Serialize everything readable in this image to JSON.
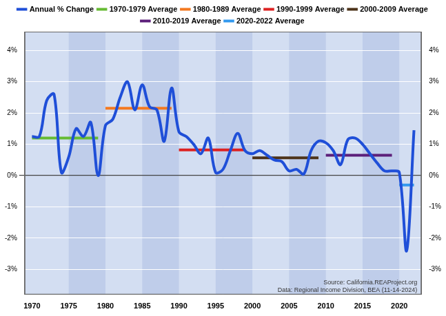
{
  "chart_data": {
    "type": "line",
    "x": [
      1970,
      1971,
      1972,
      1973,
      1974,
      1975,
      1976,
      1977,
      1978,
      1979,
      1980,
      1981,
      1982,
      1983,
      1984,
      1985,
      1986,
      1987,
      1988,
      1989,
      1990,
      1991,
      1992,
      1993,
      1994,
      1995,
      1996,
      1997,
      1998,
      1999,
      2000,
      2001,
      2002,
      2003,
      2004,
      2005,
      2006,
      2007,
      2008,
      2009,
      2010,
      2011,
      2012,
      2013,
      2014,
      2015,
      2016,
      2017,
      2018,
      2019,
      2020,
      2021,
      2022
    ],
    "series": [
      {
        "name": "Annual % Change",
        "color": "#1f4fd8",
        "values": [
          1.25,
          1.25,
          2.4,
          2.6,
          0.1,
          0.6,
          1.5,
          1.25,
          1.7,
          0.0,
          1.6,
          1.8,
          2.5,
          3.0,
          2.1,
          2.9,
          2.2,
          2.1,
          1.1,
          2.8,
          1.4,
          1.25,
          1.0,
          0.7,
          1.2,
          0.1,
          0.2,
          0.8,
          1.35,
          0.8,
          0.7,
          0.8,
          0.65,
          0.5,
          0.45,
          0.15,
          0.2,
          0.05,
          0.8,
          1.1,
          1.05,
          0.8,
          0.35,
          1.15,
          1.2,
          1.0,
          0.7,
          0.4,
          0.15,
          0.15,
          0.1,
          -2.4,
          1.45
        ]
      },
      {
        "name": "1970-1979 Average",
        "color": "#66bb33",
        "values": [
          1.2,
          1.2,
          1.2,
          1.2,
          1.2,
          1.2,
          1.2,
          1.2,
          1.2,
          1.2,
          null,
          null,
          null,
          null,
          null,
          null,
          null,
          null,
          null,
          null,
          null,
          null,
          null,
          null,
          null,
          null,
          null,
          null,
          null,
          null,
          null,
          null,
          null,
          null,
          null,
          null,
          null,
          null,
          null,
          null,
          null,
          null,
          null,
          null,
          null,
          null,
          null,
          null,
          null,
          null,
          null,
          null,
          null
        ]
      },
      {
        "name": "1980-1989 Average",
        "color": "#f47920",
        "values": [
          null,
          null,
          null,
          null,
          null,
          null,
          null,
          null,
          null,
          null,
          2.15,
          2.15,
          2.15,
          2.15,
          2.15,
          2.15,
          2.15,
          2.15,
          2.15,
          2.15,
          null,
          null,
          null,
          null,
          null,
          null,
          null,
          null,
          null,
          null,
          null,
          null,
          null,
          null,
          null,
          null,
          null,
          null,
          null,
          null,
          null,
          null,
          null,
          null,
          null,
          null,
          null,
          null,
          null,
          null,
          null,
          null,
          null
        ]
      },
      {
        "name": "1990-1999 Average",
        "color": "#dd2222",
        "values": [
          null,
          null,
          null,
          null,
          null,
          null,
          null,
          null,
          null,
          null,
          null,
          null,
          null,
          null,
          null,
          null,
          null,
          null,
          null,
          null,
          0.82,
          0.82,
          0.82,
          0.82,
          0.82,
          0.82,
          0.82,
          0.82,
          0.82,
          0.82,
          null,
          null,
          null,
          null,
          null,
          null,
          null,
          null,
          null,
          null,
          null,
          null,
          null,
          null,
          null,
          null,
          null,
          null,
          null,
          null,
          null,
          null,
          null
        ]
      },
      {
        "name": "2000-2009 Average",
        "color": "#4d3319",
        "values": [
          null,
          null,
          null,
          null,
          null,
          null,
          null,
          null,
          null,
          null,
          null,
          null,
          null,
          null,
          null,
          null,
          null,
          null,
          null,
          null,
          null,
          null,
          null,
          null,
          null,
          null,
          null,
          null,
          null,
          null,
          0.57,
          0.57,
          0.57,
          0.57,
          0.57,
          0.57,
          0.57,
          0.57,
          0.57,
          0.57,
          null,
          null,
          null,
          null,
          null,
          null,
          null,
          null,
          null,
          null,
          null,
          null,
          null
        ]
      },
      {
        "name": "2010-2019 Average",
        "color": "#5c1f7a",
        "values": [
          null,
          null,
          null,
          null,
          null,
          null,
          null,
          null,
          null,
          null,
          null,
          null,
          null,
          null,
          null,
          null,
          null,
          null,
          null,
          null,
          null,
          null,
          null,
          null,
          null,
          null,
          null,
          null,
          null,
          null,
          null,
          null,
          null,
          null,
          null,
          null,
          null,
          null,
          null,
          null,
          0.65,
          0.65,
          0.65,
          0.65,
          0.65,
          0.65,
          0.65,
          0.65,
          0.65,
          0.65,
          null,
          null,
          null
        ]
      },
      {
        "name": "2020-2022 Average",
        "color": "#3399ee",
        "values": [
          null,
          null,
          null,
          null,
          null,
          null,
          null,
          null,
          null,
          null,
          null,
          null,
          null,
          null,
          null,
          null,
          null,
          null,
          null,
          null,
          null,
          null,
          null,
          null,
          null,
          null,
          null,
          null,
          null,
          null,
          null,
          null,
          null,
          null,
          null,
          null,
          null,
          null,
          null,
          null,
          null,
          null,
          null,
          null,
          null,
          null,
          null,
          null,
          null,
          null,
          -0.3,
          -0.3,
          -0.3
        ]
      }
    ],
    "xlim": [
      1969,
      2023
    ],
    "xticks": [
      1970,
      1975,
      1980,
      1985,
      1990,
      1995,
      2000,
      2005,
      2010,
      2015,
      2020
    ],
    "ylim": [
      -3.8,
      4.6
    ],
    "yticks": [
      {
        "value": -3,
        "label": "-3%"
      },
      {
        "value": -2,
        "label": "-2%"
      },
      {
        "value": -1,
        "label": "-1%"
      },
      {
        "value": 0,
        "label": "0%"
      },
      {
        "value": 1,
        "label": "1%"
      },
      {
        "value": 2,
        "label": "2%"
      },
      {
        "value": 3,
        "label": "3%"
      },
      {
        "value": 4,
        "label": "4%"
      }
    ],
    "y2lim": [
      -3.8,
      4.6
    ],
    "y2ticks": [
      {
        "value": -3,
        "label": "-3%"
      },
      {
        "value": -2,
        "label": "-2%"
      },
      {
        "value": -1,
        "label": "-1%"
      },
      {
        "value": 0,
        "label": "0%"
      },
      {
        "value": 1,
        "label": "1%"
      },
      {
        "value": 2,
        "label": "2%"
      },
      {
        "value": 3,
        "label": "3%"
      },
      {
        "value": 4,
        "label": "4%"
      }
    ],
    "grid": true,
    "legend": "top",
    "annotations": [
      "Source: California.REAProject.org",
      "Data: Regional Income Division, BEA (11-14-2024)"
    ]
  }
}
